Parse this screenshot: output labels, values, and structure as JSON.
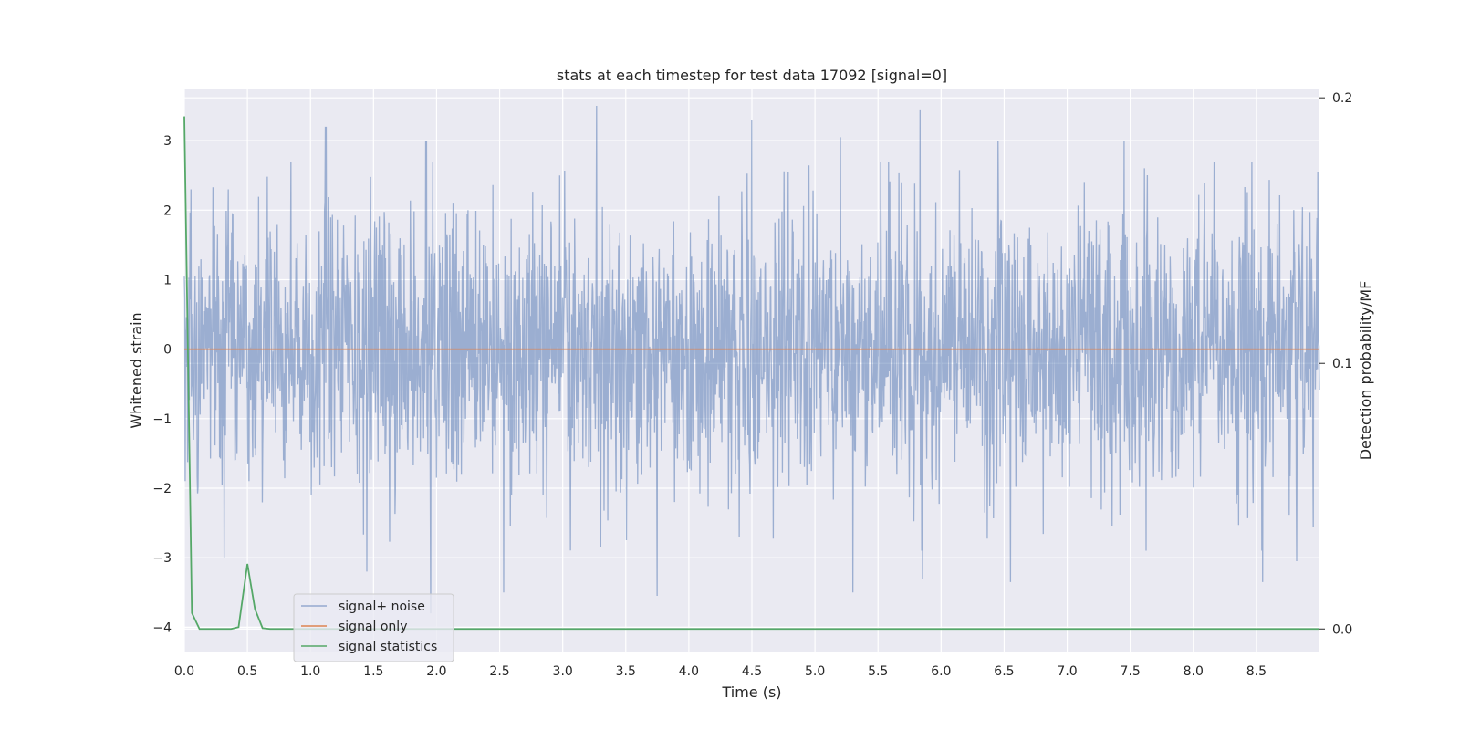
{
  "chart_data": {
    "type": "line",
    "title": "stats at each timestep for test data 17092 [signal=0]",
    "xlabel": "Time (s)",
    "ylabel": "Whitened strain",
    "y2label": "Detection probability/MF",
    "xlim": [
      0.0,
      9.0
    ],
    "ylim": [
      -4.35,
      3.75
    ],
    "y2lim": [
      -0.0085,
      0.2035
    ],
    "xticks": [
      "0.0",
      "0.5",
      "1.0",
      "1.5",
      "2.0",
      "2.5",
      "3.0",
      "3.5",
      "4.0",
      "4.5",
      "5.0",
      "5.5",
      "6.0",
      "6.5",
      "7.0",
      "7.5",
      "8.0",
      "8.5"
    ],
    "xtick_values": [
      0.0,
      0.5,
      1.0,
      1.5,
      2.0,
      2.5,
      3.0,
      3.5,
      4.0,
      4.5,
      5.0,
      5.5,
      6.0,
      6.5,
      7.0,
      7.5,
      8.0,
      8.5
    ],
    "yticks": [
      "3",
      "2",
      "1",
      "0",
      "−1",
      "−2",
      "−3",
      "−4"
    ],
    "ytick_values": [
      3,
      2,
      1,
      0,
      -1,
      -2,
      -3,
      -4
    ],
    "y2ticks": [
      "0.2",
      "0.1",
      "0.0"
    ],
    "y2tick_values": [
      0.2,
      0.1,
      0.0
    ],
    "grid": true,
    "legend_position": "lower-left",
    "series": [
      {
        "name": "signal+ noise",
        "axis": "left",
        "color": "#4c72b0",
        "style": "dense noise, amplitude roughly within -3.6 to 3.5",
        "peaks": [
          {
            "x": 0.05,
            "y": 2.3
          },
          {
            "x": 0.35,
            "y": 2.3
          },
          {
            "x": 1.12,
            "y": 3.2
          },
          {
            "x": 1.92,
            "y": 3.0
          },
          {
            "x": 3.27,
            "y": 3.5
          },
          {
            "x": 4.5,
            "y": 3.3
          },
          {
            "x": 5.2,
            "y": 3.05
          },
          {
            "x": 5.83,
            "y": 3.45
          },
          {
            "x": 6.45,
            "y": 3.0
          },
          {
            "x": 7.45,
            "y": 3.0
          },
          {
            "x": 8.55,
            "y": 2.95
          },
          {
            "x": 8.82,
            "y": 2.9
          }
        ],
        "troughs": [
          {
            "x": 0.32,
            "y": -3.0
          },
          {
            "x": 1.45,
            "y": -3.2
          },
          {
            "x": 1.95,
            "y": -3.8
          },
          {
            "x": 2.53,
            "y": -3.5
          },
          {
            "x": 3.75,
            "y": -3.55
          },
          {
            "x": 5.3,
            "y": -3.5
          },
          {
            "x": 5.85,
            "y": -3.3
          },
          {
            "x": 6.55,
            "y": -3.35
          },
          {
            "x": 8.55,
            "y": -3.35
          },
          {
            "x": 8.82,
            "y": -3.05
          }
        ]
      },
      {
        "name": "signal only",
        "axis": "left",
        "color": "#dd8452",
        "x": [
          0.0,
          9.0
        ],
        "y": [
          0.0,
          0.0
        ]
      },
      {
        "name": "signal statistics",
        "axis": "right",
        "color": "#55a868",
        "x": [
          0.0,
          0.06,
          0.12,
          0.19,
          0.25,
          0.31,
          0.37,
          0.43,
          0.5,
          0.56,
          0.62,
          0.68,
          0.75,
          9.0
        ],
        "y": [
          0.193,
          0.006,
          0.0,
          0.0,
          0.0,
          0.0,
          0.0,
          0.0007,
          0.0245,
          0.0075,
          0.0003,
          0.0,
          0.0,
          0.0
        ]
      }
    ]
  }
}
